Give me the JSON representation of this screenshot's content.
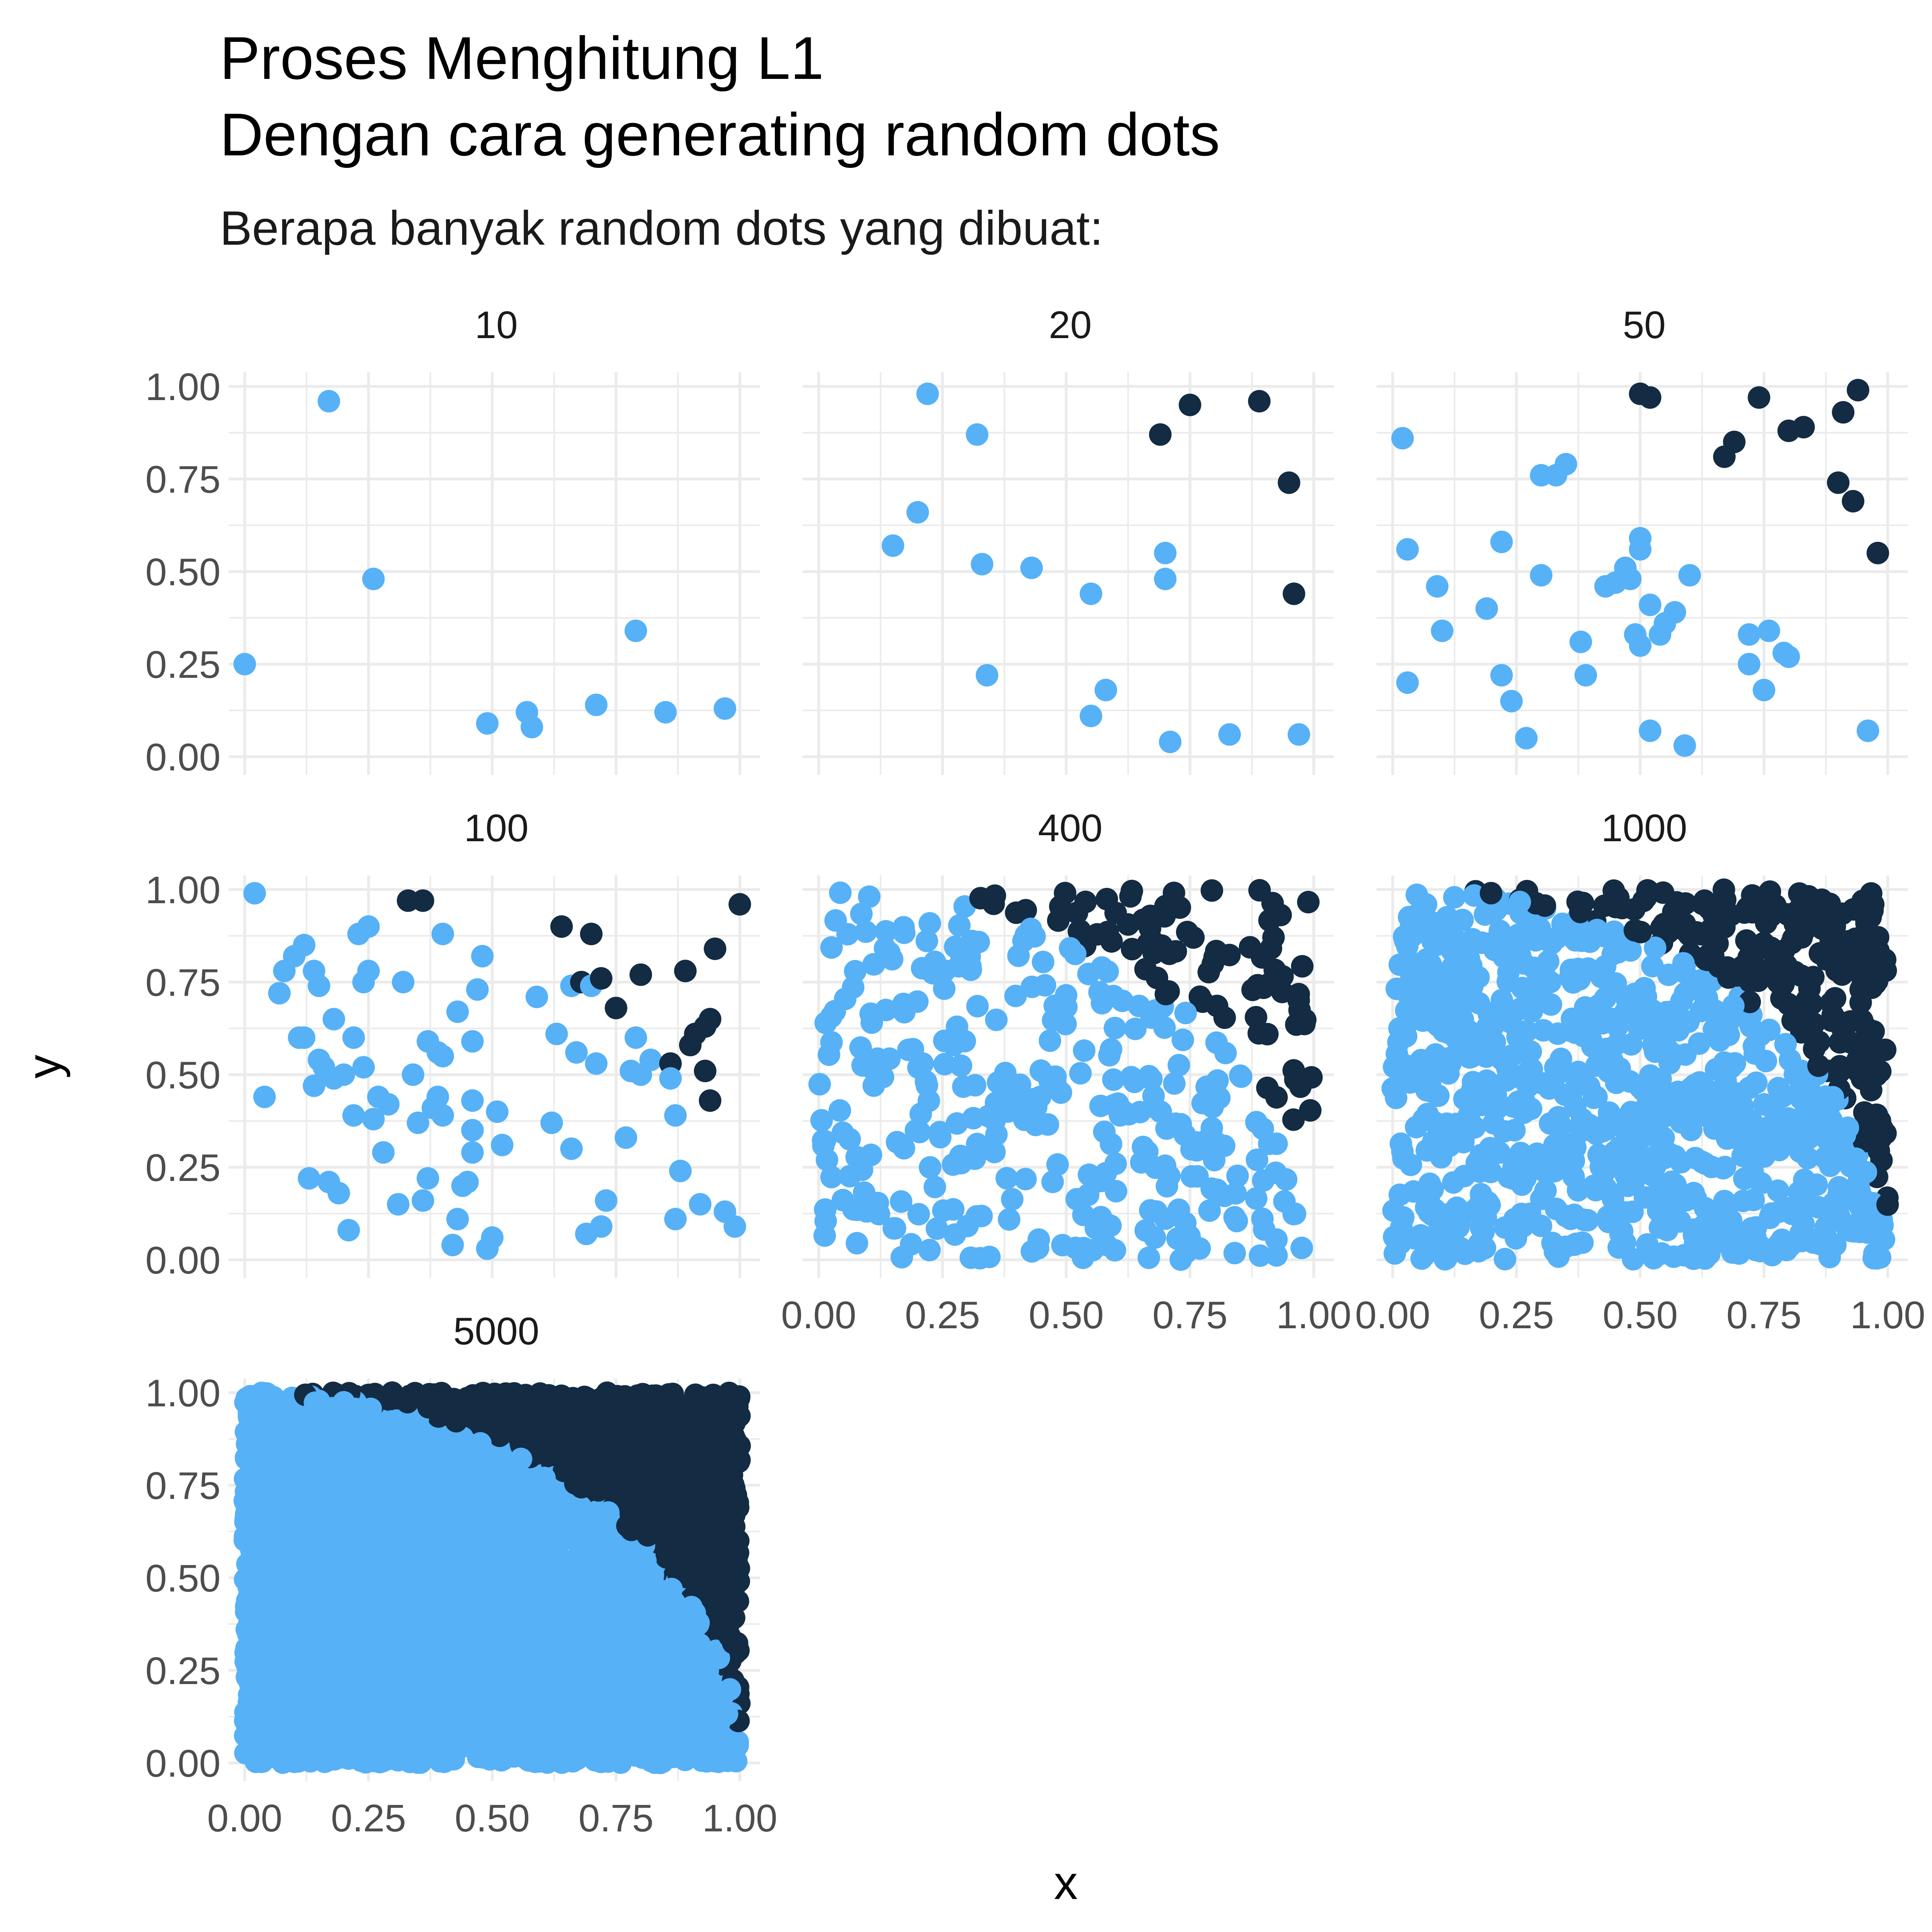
{
  "chart_data": {
    "type": "scatter",
    "title": "Proses Menghitung L1",
    "title_line2": "Dengan cara generating random dots",
    "subtitle": "Berapa banyak random dots yang dibuat:",
    "xlabel": "x",
    "ylabel": "y",
    "xlim": [
      0,
      1
    ],
    "ylim": [
      0,
      1
    ],
    "x_ticks": [
      "0.00",
      "0.25",
      "0.50",
      "0.75",
      "1.00"
    ],
    "y_ticks": [
      "0.00",
      "0.25",
      "0.50",
      "0.75",
      "1.00"
    ],
    "grid": true,
    "colors": {
      "inside": "#56B1F7",
      "outside": "#132B43"
    },
    "panels": [
      {
        "label": "10",
        "n": 10,
        "points": [
          [
            0.0,
            0.25,
            0
          ],
          [
            0.17,
            0.96,
            0
          ],
          [
            0.26,
            0.48,
            0
          ],
          [
            0.49,
            0.09,
            0
          ],
          [
            0.57,
            0.12,
            0
          ],
          [
            0.58,
            0.08,
            0
          ],
          [
            0.71,
            0.14,
            0
          ],
          [
            0.79,
            0.34,
            0
          ],
          [
            0.85,
            0.12,
            0
          ],
          [
            0.97,
            0.13,
            0
          ]
        ]
      },
      {
        "label": "20",
        "n": 20,
        "points": [
          [
            0.15,
            0.57,
            0
          ],
          [
            0.2,
            0.66,
            0
          ],
          [
            0.22,
            0.98,
            0
          ],
          [
            0.32,
            0.87,
            0
          ],
          [
            0.33,
            0.52,
            0
          ],
          [
            0.34,
            0.22,
            0
          ],
          [
            0.43,
            0.51,
            0
          ],
          [
            0.55,
            0.44,
            0
          ],
          [
            0.55,
            0.11,
            0
          ],
          [
            0.58,
            0.18,
            0
          ],
          [
            0.69,
            0.87,
            1
          ],
          [
            0.7,
            0.48,
            0
          ],
          [
            0.7,
            0.55,
            0
          ],
          [
            0.71,
            0.04,
            0
          ],
          [
            0.75,
            0.95,
            1
          ],
          [
            0.83,
            0.06,
            0
          ],
          [
            0.89,
            0.96,
            1
          ],
          [
            0.95,
            0.74,
            1
          ],
          [
            0.96,
            0.44,
            1
          ],
          [
            0.97,
            0.06,
            0
          ]
        ]
      },
      {
        "label": "50",
        "n": 50,
        "points": [
          [
            0.02,
            0.86,
            0
          ],
          [
            0.03,
            0.56,
            0
          ],
          [
            0.03,
            0.2,
            0
          ],
          [
            0.09,
            0.46,
            0
          ],
          [
            0.1,
            0.34,
            0
          ],
          [
            0.19,
            0.4,
            0
          ],
          [
            0.22,
            0.58,
            0
          ],
          [
            0.22,
            0.22,
            0
          ],
          [
            0.24,
            0.15,
            0
          ],
          [
            0.27,
            0.05,
            0
          ],
          [
            0.3,
            0.49,
            0
          ],
          [
            0.3,
            0.76,
            0
          ],
          [
            0.33,
            0.76,
            0
          ],
          [
            0.35,
            0.79,
            0
          ],
          [
            0.38,
            0.31,
            0
          ],
          [
            0.39,
            0.22,
            0
          ],
          [
            0.43,
            0.46,
            0
          ],
          [
            0.45,
            0.47,
            0
          ],
          [
            0.47,
            0.51,
            0
          ],
          [
            0.48,
            0.48,
            0
          ],
          [
            0.49,
            0.33,
            0
          ],
          [
            0.5,
            0.3,
            0
          ],
          [
            0.5,
            0.56,
            0
          ],
          [
            0.5,
            0.59,
            0
          ],
          [
            0.5,
            0.98,
            1
          ],
          [
            0.52,
            0.97,
            1
          ],
          [
            0.52,
            0.41,
            0
          ],
          [
            0.52,
            0.07,
            0
          ],
          [
            0.54,
            0.33,
            0
          ],
          [
            0.55,
            0.36,
            0
          ],
          [
            0.57,
            0.39,
            0
          ],
          [
            0.59,
            0.03,
            0
          ],
          [
            0.6,
            0.49,
            0
          ],
          [
            0.67,
            0.81,
            1
          ],
          [
            0.69,
            0.85,
            1
          ],
          [
            0.72,
            0.33,
            0
          ],
          [
            0.72,
            0.25,
            0
          ],
          [
            0.74,
            0.97,
            1
          ],
          [
            0.75,
            0.18,
            0
          ],
          [
            0.76,
            0.34,
            0
          ],
          [
            0.79,
            0.28,
            0
          ],
          [
            0.8,
            0.27,
            0
          ],
          [
            0.8,
            0.88,
            1
          ],
          [
            0.83,
            0.89,
            1
          ],
          [
            0.9,
            0.74,
            1
          ],
          [
            0.91,
            0.93,
            1
          ],
          [
            0.93,
            0.69,
            1
          ],
          [
            0.94,
            0.99,
            1
          ],
          [
            0.96,
            0.07,
            0
          ],
          [
            0.98,
            0.55,
            1
          ]
        ]
      },
      {
        "label": "100",
        "n": 100,
        "points": [
          [
            0.02,
            0.99,
            0
          ],
          [
            0.04,
            0.44,
            0
          ],
          [
            0.07,
            0.72,
            0
          ],
          [
            0.08,
            0.78,
            0
          ],
          [
            0.1,
            0.82,
            0
          ],
          [
            0.11,
            0.6,
            0
          ],
          [
            0.12,
            0.85,
            0
          ],
          [
            0.12,
            0.6,
            0
          ],
          [
            0.13,
            0.22,
            0
          ],
          [
            0.14,
            0.78,
            0
          ],
          [
            0.14,
            0.47,
            0
          ],
          [
            0.15,
            0.74,
            0
          ],
          [
            0.15,
            0.54,
            0
          ],
          [
            0.16,
            0.52,
            0
          ],
          [
            0.17,
            0.21,
            0
          ],
          [
            0.18,
            0.65,
            0
          ],
          [
            0.18,
            0.49,
            0
          ],
          [
            0.19,
            0.18,
            0
          ],
          [
            0.2,
            0.5,
            0
          ],
          [
            0.21,
            0.08,
            0
          ],
          [
            0.22,
            0.6,
            0
          ],
          [
            0.22,
            0.39,
            0
          ],
          [
            0.23,
            0.88,
            0
          ],
          [
            0.24,
            0.52,
            0
          ],
          [
            0.24,
            0.75,
            0
          ],
          [
            0.25,
            0.9,
            0
          ],
          [
            0.25,
            0.78,
            0
          ],
          [
            0.26,
            0.38,
            0
          ],
          [
            0.27,
            0.44,
            0
          ],
          [
            0.28,
            0.29,
            0
          ],
          [
            0.29,
            0.42,
            0
          ],
          [
            0.31,
            0.15,
            0
          ],
          [
            0.32,
            0.75,
            0
          ],
          [
            0.33,
            0.97,
            1
          ],
          [
            0.34,
            0.5,
            0
          ],
          [
            0.35,
            0.37,
            0
          ],
          [
            0.36,
            0.16,
            0
          ],
          [
            0.36,
            0.97,
            1
          ],
          [
            0.37,
            0.59,
            0
          ],
          [
            0.37,
            0.22,
            0
          ],
          [
            0.38,
            0.41,
            0
          ],
          [
            0.39,
            0.44,
            0
          ],
          [
            0.39,
            0.56,
            0
          ],
          [
            0.4,
            0.55,
            0
          ],
          [
            0.4,
            0.88,
            0
          ],
          [
            0.4,
            0.39,
            0
          ],
          [
            0.42,
            0.04,
            0
          ],
          [
            0.43,
            0.11,
            0
          ],
          [
            0.43,
            0.67,
            0
          ],
          [
            0.44,
            0.2,
            0
          ],
          [
            0.45,
            0.21,
            0
          ],
          [
            0.46,
            0.43,
            0
          ],
          [
            0.46,
            0.29,
            0
          ],
          [
            0.46,
            0.59,
            0
          ],
          [
            0.46,
            0.35,
            0
          ],
          [
            0.47,
            0.73,
            0
          ],
          [
            0.48,
            0.82,
            0
          ],
          [
            0.49,
            0.03,
            0
          ],
          [
            0.5,
            0.06,
            0
          ],
          [
            0.51,
            0.4,
            0
          ],
          [
            0.52,
            0.31,
            0
          ],
          [
            0.59,
            0.71,
            0
          ],
          [
            0.62,
            0.37,
            0
          ],
          [
            0.63,
            0.61,
            0
          ],
          [
            0.64,
            0.9,
            1
          ],
          [
            0.66,
            0.3,
            0
          ],
          [
            0.66,
            0.74,
            0
          ],
          [
            0.67,
            0.56,
            0
          ],
          [
            0.68,
            0.75,
            1
          ],
          [
            0.69,
            0.07,
            0
          ],
          [
            0.7,
            0.74,
            0
          ],
          [
            0.7,
            0.88,
            1
          ],
          [
            0.71,
            0.53,
            0
          ],
          [
            0.72,
            0.76,
            1
          ],
          [
            0.72,
            0.09,
            0
          ],
          [
            0.73,
            0.16,
            0
          ],
          [
            0.75,
            0.68,
            1
          ],
          [
            0.77,
            0.33,
            0
          ],
          [
            0.78,
            0.51,
            0
          ],
          [
            0.79,
            0.6,
            0
          ],
          [
            0.8,
            0.5,
            0
          ],
          [
            0.8,
            0.77,
            1
          ],
          [
            0.82,
            0.54,
            0
          ],
          [
            0.86,
            0.53,
            1
          ],
          [
            0.86,
            0.49,
            0
          ],
          [
            0.87,
            0.11,
            0
          ],
          [
            0.87,
            0.39,
            0
          ],
          [
            0.88,
            0.24,
            0
          ],
          [
            0.89,
            0.78,
            1
          ],
          [
            0.9,
            0.58,
            1
          ],
          [
            0.91,
            0.61,
            1
          ],
          [
            0.92,
            0.15,
            0
          ],
          [
            0.93,
            0.63,
            1
          ],
          [
            0.93,
            0.51,
            1
          ],
          [
            0.94,
            0.65,
            1
          ],
          [
            0.94,
            0.43,
            1
          ],
          [
            0.95,
            0.84,
            1
          ],
          [
            0.97,
            0.13,
            0
          ],
          [
            0.99,
            0.09,
            0
          ],
          [
            1.0,
            0.96,
            1
          ]
        ]
      }
    ]
  }
}
